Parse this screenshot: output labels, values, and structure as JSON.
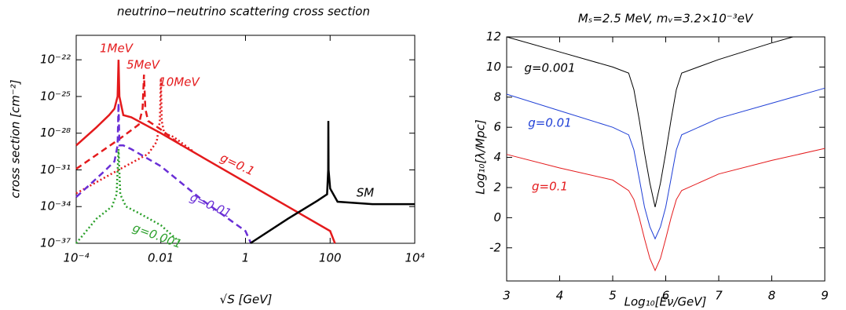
{
  "chart_data": [
    {
      "type": "line",
      "title": "neutrino−neutrino scattering cross section",
      "xlabel": "√S  [GeV]",
      "ylabel": "cross section [cm⁻²]",
      "xscale": "log",
      "yscale": "log",
      "xlim": [
        0.0001,
        10000
      ],
      "ylim": [
        1e-37,
        1e-20
      ],
      "xticks": [
        {
          "value": 0.0001,
          "label": "10⁻⁴"
        },
        0.01,
        1,
        100,
        {
          "value": 10000,
          "label": "10⁴"
        }
      ],
      "yticks": [
        {
          "value": 1e-37,
          "label": "10⁻³⁷"
        },
        {
          "value": 1e-34,
          "label": "10⁻³⁴"
        },
        {
          "value": 1e-31,
          "label": "10⁻³¹"
        },
        {
          "value": 1e-28,
          "label": "10⁻²⁸"
        },
        {
          "value": 1e-25,
          "label": "10⁻²⁵"
        },
        {
          "value": 1e-22,
          "label": "10⁻²²"
        }
      ],
      "series": [
        {
          "color": "#e41a1c",
          "style": "solid",
          "x": [
            0.0001,
            0.0003,
            0.0006,
            0.0008,
            0.00095,
            0.001,
            0.00105,
            0.0013,
            0.002,
            0.01,
            0.1,
            1,
            10,
            100,
            130
          ],
          "values": [
            1e-29,
            3e-28,
            3e-27,
            1e-26,
            1e-25,
            1e-22,
            1e-25,
            3e-27,
            2e-27,
            1e-28,
            1e-30,
            1e-32,
            1e-34,
            1e-36,
            1e-37
          ]
        },
        {
          "color": "#e41a1c",
          "style": "dashed",
          "x": [
            0.0001,
            0.001,
            0.003,
            0.0037,
            0.004,
            0.0043,
            0.005,
            0.01,
            0.03
          ],
          "values": [
            1.2e-31,
            3e-29,
            5e-28,
            1e-26,
            6e-24,
            1e-26,
            1e-27,
            2e-28,
            1e-29
          ]
        },
        {
          "color": "#e41a1c",
          "style": "dotted",
          "x": [
            0.0001,
            0.001,
            0.005,
            0.008,
            0.0095,
            0.01,
            0.0105,
            0.012,
            0.02,
            0.06
          ],
          "values": [
            1.2e-33,
            1e-31,
            2e-30,
            2e-29,
            1e-27,
            3e-24,
            1e-27,
            1e-28,
            5e-29,
            3e-30
          ]
        },
        {
          "color": "#6a2fd6",
          "style": "dashed",
          "x": [
            0.0001,
            0.0005,
            0.0008,
            0.00095,
            0.001,
            0.00105,
            0.0013,
            0.002,
            0.01,
            0.1,
            1,
            1.35
          ],
          "values": [
            6e-34,
            1e-31,
            5e-31,
            1e-29,
            3e-26,
            1e-29,
            1e-29,
            5e-30,
            2e-31,
            3e-34,
            1e-36,
            1e-37
          ]
        },
        {
          "color": "#2ca02c",
          "style": "dotted",
          "x": [
            0.0001,
            0.0003,
            0.0007,
            0.0009,
            0.001,
            0.0011,
            0.0015,
            0.003,
            0.01,
            0.03
          ],
          "values": [
            1e-37,
            1e-35,
            1e-34,
            1e-33,
            5e-30,
            1e-33,
            1e-34,
            3e-35,
            3e-36,
            1e-37
          ]
        },
        {
          "color": "#000000",
          "style": "solid",
          "x": [
            1.3,
            10,
            50,
            85,
            90,
            91,
            92,
            100,
            150,
            1000,
            10000
          ],
          "values": [
            1e-37,
            1e-35,
            3e-34,
            1e-33,
            1e-31,
            1e-27,
            1e-31,
            3e-33,
            2.5e-34,
            1.6e-34,
            1.6e-34
          ]
        }
      ],
      "annotations": [
        {
          "text": "1MeV",
          "color": "#e41a1c"
        },
        {
          "text": "5MeV",
          "color": "#e41a1c"
        },
        {
          "text": "10MeV",
          "color": "#e41a1c"
        },
        {
          "text": "g=0.1",
          "color": "#e41a1c"
        },
        {
          "text": "g=0.01",
          "color": "#6a2fd6"
        },
        {
          "text": "g=0.001",
          "color": "#2ca02c"
        },
        {
          "text": "SM",
          "color": "#000000"
        }
      ]
    },
    {
      "type": "line",
      "title": "Mₛ=2.5 MeV, mᵥ=3.2×10⁻³eV",
      "xlabel": "Log₁₀[Eν/GeV]",
      "ylabel": "Log₁₀[λ/Mpc]",
      "xlim": [
        3,
        9
      ],
      "ylim": [
        -4.2,
        12
      ],
      "xticks": [
        3,
        4,
        5,
        6,
        7,
        8,
        9
      ],
      "yticks": [
        -2,
        0,
        2,
        4,
        6,
        8,
        10,
        12
      ],
      "series": [
        {
          "color": "#000000",
          "style": "solid",
          "x": [
            3,
            4,
            5,
            5.3,
            5.4,
            5.5,
            5.6,
            5.7,
            5.8,
            5.9,
            6.0,
            6.1,
            6.2,
            6.3,
            7,
            8,
            8.4
          ],
          "values": [
            12.0,
            11.0,
            10.0,
            9.6,
            8.5,
            6.5,
            4.3,
            2.3,
            0.7,
            2.3,
            4.3,
            6.5,
            8.5,
            9.6,
            10.5,
            11.6,
            12.0
          ]
        },
        {
          "color": "#1f3fd6",
          "style": "solid",
          "x": [
            3,
            4,
            5,
            5.3,
            5.4,
            5.5,
            5.6,
            5.7,
            5.8,
            5.9,
            6.0,
            6.1,
            6.2,
            6.3,
            7,
            8,
            9
          ],
          "values": [
            8.2,
            7.1,
            6.0,
            5.5,
            4.5,
            2.6,
            0.7,
            -0.6,
            -1.4,
            -0.6,
            0.7,
            2.6,
            4.5,
            5.5,
            6.6,
            7.6,
            8.6
          ]
        },
        {
          "color": "#e41a1c",
          "style": "solid",
          "x": [
            3,
            4,
            5,
            5.3,
            5.4,
            5.5,
            5.6,
            5.7,
            5.8,
            5.9,
            6.0,
            6.1,
            6.2,
            6.3,
            7,
            8,
            9
          ],
          "values": [
            4.2,
            3.3,
            2.5,
            1.8,
            1.2,
            0.0,
            -1.4,
            -2.7,
            -3.5,
            -2.7,
            -1.4,
            0.0,
            1.2,
            1.8,
            2.9,
            3.8,
            4.6
          ]
        }
      ],
      "annotations": [
        {
          "text": "g=0.001",
          "color": "#000000"
        },
        {
          "text": "g=0.01",
          "color": "#1f3fd6"
        },
        {
          "text": "g=0.1",
          "color": "#e41a1c"
        }
      ]
    }
  ]
}
